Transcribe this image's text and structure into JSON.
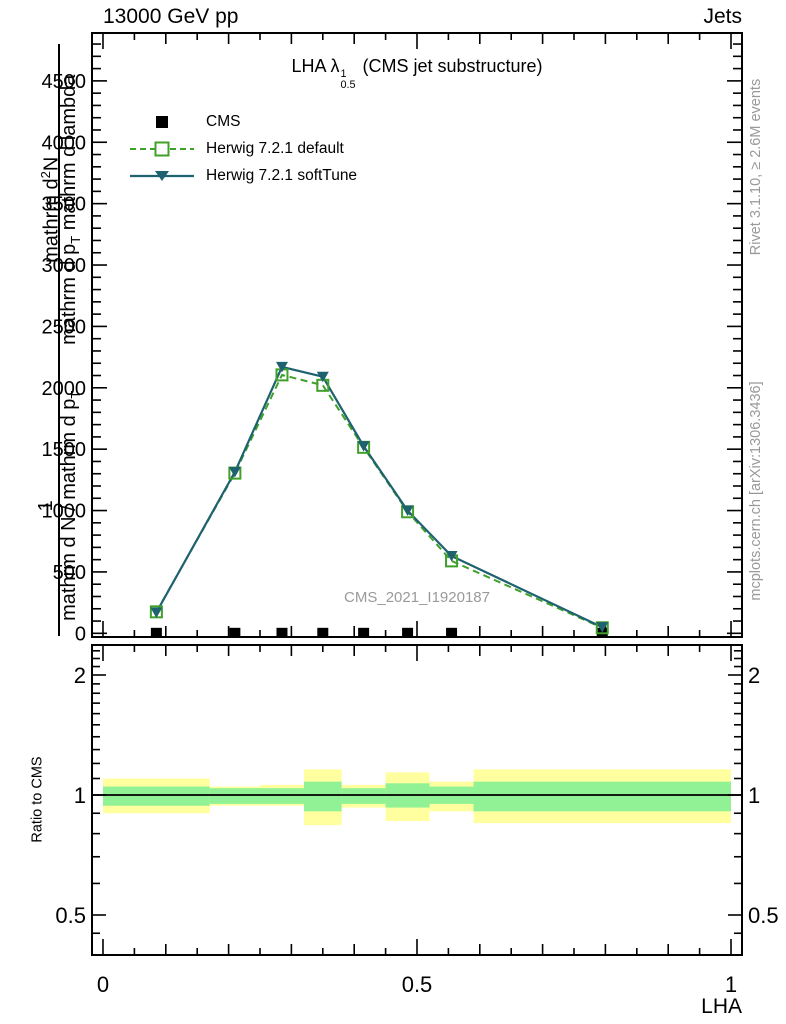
{
  "header": {
    "left": "13000 GeV pp",
    "right": "Jets"
  },
  "panel_title": {
    "prefix": "LHA λ",
    "sup": "1",
    "sub": "0.5",
    "suffix": "(CMS jet substructure)"
  },
  "legend": [
    {
      "label": "CMS"
    },
    {
      "label": "Herwig 7.2.1 default"
    },
    {
      "label": "Herwig 7.2.1 softTune"
    }
  ],
  "watermark": "CMS_2021_I1920187",
  "side_notes": {
    "top_right": "Rivet 3.1.10, ≥ 2.6M events",
    "bottom_right": "mcplots.cern.ch [arXiv:1306.3436]"
  },
  "ylabel_glitch": {
    "num1": "1",
    "num2_pre": "mathrm d",
    "num2_sup": "2",
    "num2_post": "N",
    "den1_pre": "mathrm d N / mathrm d p",
    "den1_sub": "T",
    "den2_pre": "mathrm d p",
    "den2_sub": "T",
    "den2_post": " mathrm d lambda"
  },
  "ratio_ylabel": "Ratio to CMS",
  "xlabel": "LHA",
  "colors": {
    "cms": "#000000",
    "herwig_default": "#3fa02a",
    "herwig_softtune": "#1e616f",
    "band_outer": "#ffffa0",
    "band_inner": "#90f295",
    "notes": "#999999",
    "watermark": "#9a9a9a"
  },
  "chart_data": {
    "type": "line",
    "title": "LHA lambda^1_0.5 (CMS jet substructure)",
    "xlabel": "LHA",
    "xlim": [
      -0.0175,
      1.0175
    ],
    "xticks_major": [
      0,
      0.5,
      1
    ],
    "xticks_labels": [
      "0",
      "0.5",
      "1"
    ],
    "xtick_medium_step": 0.1,
    "xtick_minor_step": 0.05,
    "main_panel": {
      "ylim": [
        -30,
        4890
      ],
      "yticks_major": [
        0,
        500,
        1000,
        1500,
        2000,
        2500,
        3000,
        3500,
        4000,
        4500
      ],
      "ytick_minor_step": 100,
      "x": [
        0.085,
        0.21,
        0.285,
        0.35,
        0.415,
        0.485,
        0.555,
        0.795
      ],
      "series": [
        {
          "name": "CMS",
          "marker": "square-filled",
          "line": false,
          "values": [
            0,
            0,
            0,
            0,
            0,
            0,
            0,
            0
          ]
        },
        {
          "name": "Herwig 7.2.1 default",
          "marker": "square-open",
          "line": true,
          "dash": true,
          "values": [
            175,
            1305,
            2105,
            2020,
            1515,
            990,
            590,
            45
          ]
        },
        {
          "name": "Herwig 7.2.1 softTune",
          "marker": "triangle-down",
          "line": true,
          "dash": false,
          "values": [
            170,
            1315,
            2170,
            2090,
            1525,
            1000,
            630,
            50
          ]
        }
      ]
    },
    "ratio_panel": {
      "scale": "log2",
      "ylim": [
        0.4,
        2.38
      ],
      "yticks_major": [
        0.5,
        1,
        2
      ],
      "yticks_major_labels": [
        "0.5",
        "1",
        "2"
      ],
      "yticks_minor": [
        0.45,
        0.6,
        0.7,
        0.8,
        0.9,
        1.1,
        1.2,
        1.3,
        1.4,
        1.5,
        1.6,
        1.7,
        1.8,
        1.9,
        2.1,
        2.2,
        2.3
      ],
      "reference_line": 1,
      "band_edges": [
        0,
        0.17,
        0.25,
        0.32,
        0.38,
        0.45,
        0.52,
        0.59,
        1.0
      ],
      "band_yellow": [
        [
          0.9,
          1.1
        ],
        [
          0.94,
          1.05
        ],
        [
          0.94,
          1.06
        ],
        [
          0.84,
          1.16
        ],
        [
          0.93,
          1.06
        ],
        [
          0.86,
          1.14
        ],
        [
          0.91,
          1.08
        ],
        [
          0.85,
          1.16
        ]
      ],
      "band_green": [
        [
          0.94,
          1.05
        ],
        [
          0.95,
          1.04
        ],
        [
          0.95,
          1.04
        ],
        [
          0.91,
          1.08
        ],
        [
          0.95,
          1.04
        ],
        [
          0.93,
          1.07
        ],
        [
          0.95,
          1.05
        ],
        [
          0.91,
          1.08
        ]
      ],
      "legend_position": "none"
    }
  }
}
